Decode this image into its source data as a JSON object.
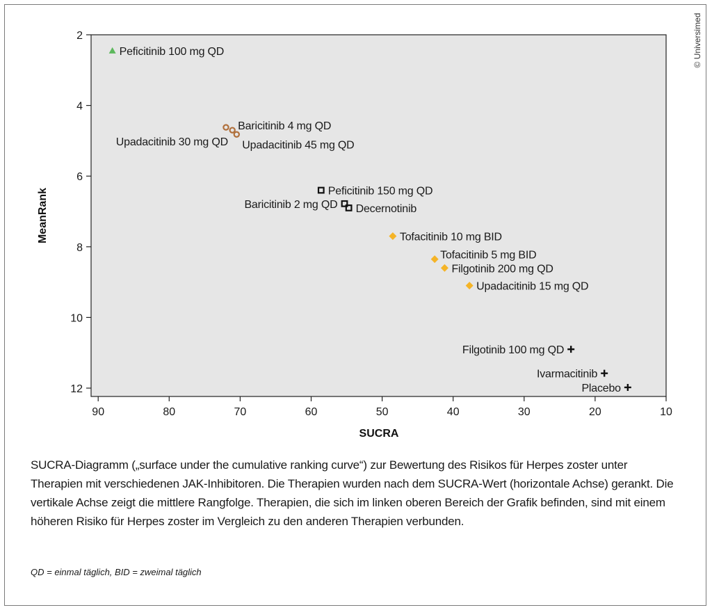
{
  "chart_data": {
    "type": "scatter",
    "xlabel": "SUCRA",
    "ylabel": "MeanRank",
    "xlim": [
      91,
      10
    ],
    "ylim": [
      2,
      12.2
    ],
    "x_reversed": true,
    "y_reversed": true,
    "xticks": [
      90,
      80,
      70,
      60,
      50,
      40,
      30,
      20,
      10
    ],
    "yticks": [
      2,
      4,
      6,
      8,
      10,
      12
    ],
    "grid": false,
    "background": "#e6e6e6",
    "points": [
      {
        "label": "Peficitinib 100 mg QD",
        "x": 88,
        "y": 2.45,
        "marker": "triangle",
        "color": "#5cb85c",
        "label_side": "right"
      },
      {
        "label": "Baricitinib 4 mg QD",
        "x": 71.1,
        "y": 4.7,
        "marker": "circle",
        "color": "#b0703c",
        "label_side": "above-right"
      },
      {
        "label": "Upadacitinib 30 mg QD",
        "x": 72,
        "y": 4.62,
        "marker": "circle",
        "color": "#b0703c",
        "label_side": "left-below"
      },
      {
        "label": "Upadacitinib 45 mg QD",
        "x": 70.5,
        "y": 4.82,
        "marker": "circle",
        "color": "#b0703c",
        "label_side": "below-right"
      },
      {
        "label": "Peficitinib 150 mg QD",
        "x": 58.6,
        "y": 6.4,
        "marker": "square",
        "color": "#111111",
        "label_side": "right"
      },
      {
        "label": "Baricitinib 2 mg QD",
        "x": 55.3,
        "y": 6.78,
        "marker": "square",
        "color": "#111111",
        "label_side": "left"
      },
      {
        "label": "Decernotinib",
        "x": 54.7,
        "y": 6.9,
        "marker": "square",
        "color": "#111111",
        "label_side": "right"
      },
      {
        "label": "Tofacitinib 10 mg BID",
        "x": 48.5,
        "y": 7.7,
        "marker": "diamond",
        "color": "#f5b427",
        "label_side": "right"
      },
      {
        "label": "Tofacitinib 5 mg BID",
        "x": 42.6,
        "y": 8.35,
        "marker": "diamond",
        "color": "#f5b427",
        "label_side": "above-right"
      },
      {
        "label": "Filgotinib 200 mg QD",
        "x": 41.2,
        "y": 8.6,
        "marker": "diamond",
        "color": "#f5b427",
        "label_side": "right"
      },
      {
        "label": "Upadacitinib 15 mg QD",
        "x": 37.7,
        "y": 9.1,
        "marker": "diamond",
        "color": "#f5b427",
        "label_side": "right"
      },
      {
        "label": "Filgotinib 100 mg QD",
        "x": 23.4,
        "y": 10.9,
        "marker": "plus",
        "color": "#111111",
        "label_side": "left"
      },
      {
        "label": "Ivarmacitinib",
        "x": 18.7,
        "y": 11.58,
        "marker": "plus",
        "color": "#111111",
        "label_side": "left"
      },
      {
        "label": "Placebo",
        "x": 15.4,
        "y": 11.98,
        "marker": "plus",
        "color": "#111111",
        "label_side": "left"
      }
    ]
  },
  "caption": "SUCRA-Diagramm („surface under the cumulative ranking curve“) zur Bewertung des Risikos für Herpes zoster unter Therapien mit verschiedenen JAK-Inhibitoren. Die Therapien wurden nach dem SUCRA-Wert (horizontale Achse) gerankt. Die vertikale Achse zeigt die mittlere Rangfolge. Therapien, die sich im linken oberen Bereich der Grafik befinden, sind mit einem höheren Risiko für Herpes zoster im Vergleich zu den anderen Therapien verbunden.",
  "footnote": "QD = einmal täglich, BID = zweimal täglich",
  "copyright": "© Universimed"
}
